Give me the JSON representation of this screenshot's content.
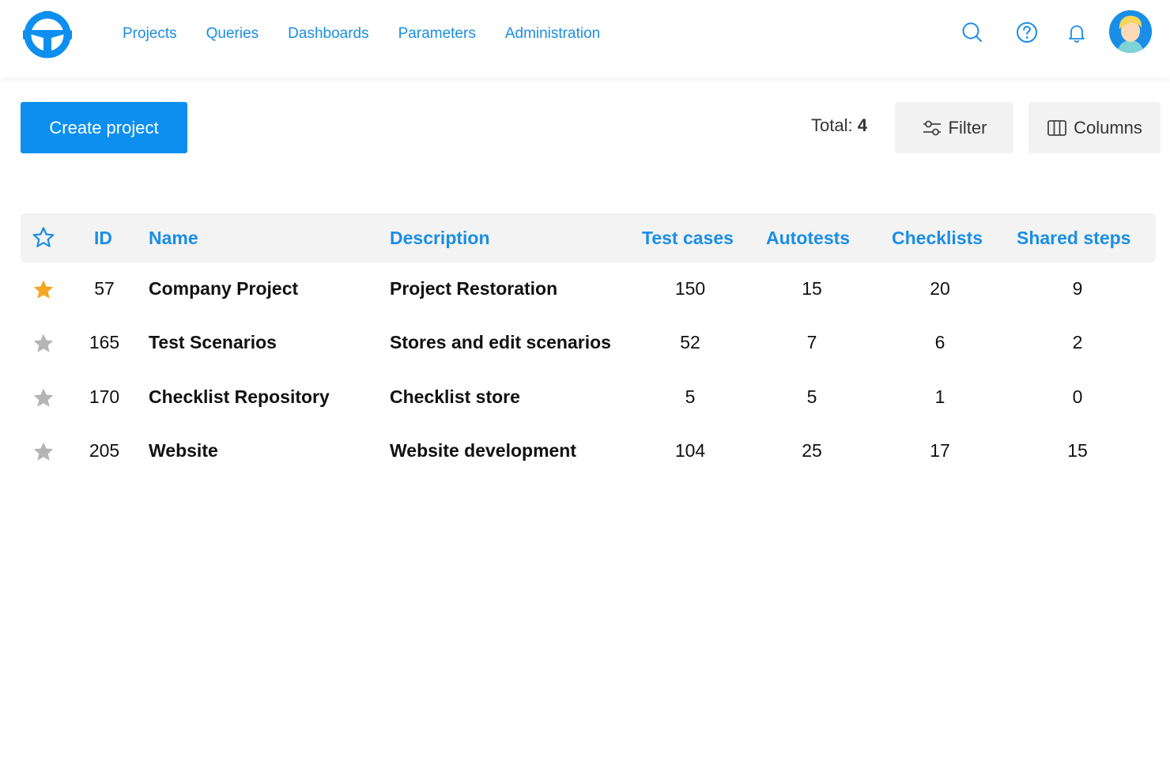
{
  "nav": {
    "items": [
      "Projects",
      "Queries",
      "Dashboards",
      "Parameters",
      "Administration"
    ]
  },
  "header_icons": [
    "search-icon",
    "help-icon",
    "bell-icon"
  ],
  "colors": {
    "accent": "#1a8ee6",
    "button": "#0d8ff0",
    "star_active": "#f5a623",
    "star_inactive": "#b5b5b5"
  },
  "toolbar": {
    "create_label": "Create project",
    "total_label": "Total:",
    "total_value": "4",
    "filter_label": "Filter",
    "columns_label": "Columns"
  },
  "table": {
    "headers": {
      "id": "ID",
      "name": "Name",
      "description": "Description",
      "test_cases": "Test cases",
      "autotests": "Autotests",
      "checklists": "Checklists",
      "shared_steps": "Shared steps"
    },
    "rows": [
      {
        "favorite": true,
        "id": "57",
        "name": "Company Project",
        "description": "Project Restoration",
        "test_cases": "150",
        "autotests": "15",
        "checklists": "20",
        "shared_steps": "9"
      },
      {
        "favorite": false,
        "id": "165",
        "name": "Test Scenarios",
        "description": "Stores and edit scenarios",
        "test_cases": "52",
        "autotests": "7",
        "checklists": "6",
        "shared_steps": "2"
      },
      {
        "favorite": false,
        "id": "170",
        "name": "Checklist Repository",
        "description": "Checklist store",
        "test_cases": "5",
        "autotests": "5",
        "checklists": "1",
        "shared_steps": "0"
      },
      {
        "favorite": false,
        "id": "205",
        "name": "Website",
        "description": "Website development",
        "test_cases": "104",
        "autotests": "25",
        "checklists": "17",
        "shared_steps": "15"
      }
    ]
  }
}
